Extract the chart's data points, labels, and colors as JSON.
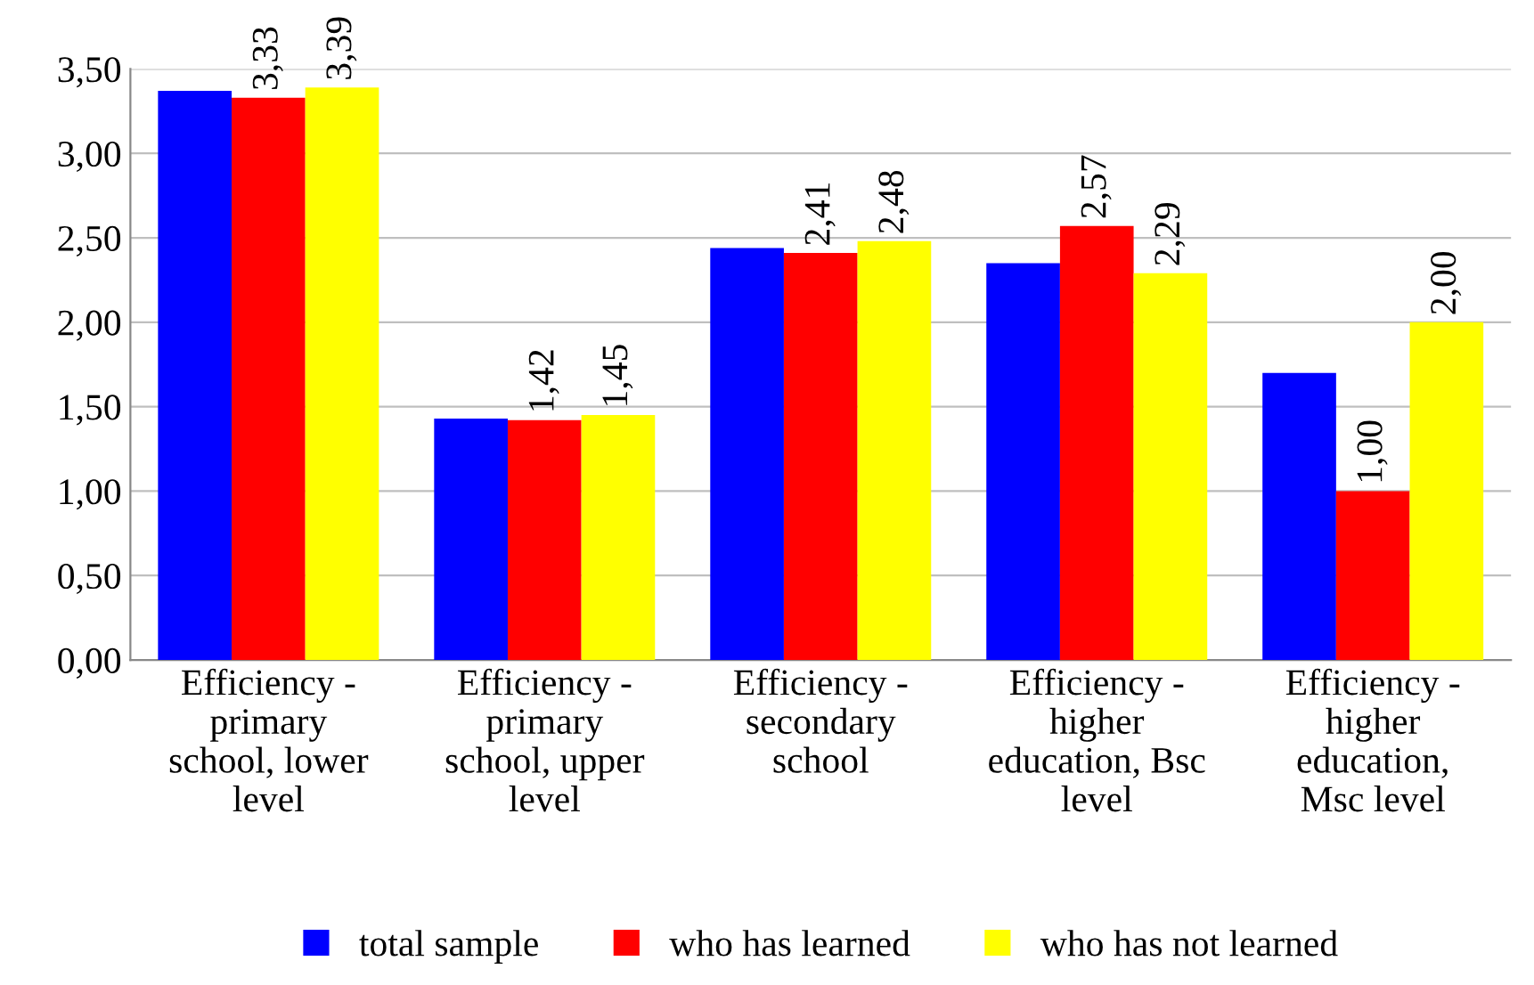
{
  "chart_data": {
    "type": "bar",
    "categories": [
      "Efficiency -\nprimary\nschool, lower\nlevel",
      "Efficiency -\nprimary\nschool, upper\nlevel",
      "Efficiency -\nsecondary\nschool",
      "Efficiency -\nhigher\neducation, Bsc\nlevel",
      "Efficiency -\nhigher\neducation,\nMsc level"
    ],
    "series": [
      {
        "name": "total sample",
        "color": "#0000ff",
        "values": [
          3.37,
          1.43,
          2.44,
          2.35,
          1.7
        ],
        "value_labels": [
          null,
          null,
          null,
          null,
          null
        ]
      },
      {
        "name": "who has learned",
        "color": "#ff0000",
        "values": [
          3.33,
          1.42,
          2.41,
          2.57,
          1.0
        ],
        "value_labels": [
          "3,33",
          "1,42",
          "2,41",
          "2,57",
          "1,00"
        ]
      },
      {
        "name": "who has not learned",
        "color": "#ffff00",
        "values": [
          3.39,
          1.45,
          2.48,
          2.29,
          2.0
        ],
        "value_labels": [
          "3,39",
          "1,45",
          "2,48",
          "2,29",
          "2,00"
        ]
      }
    ],
    "ylim": [
      0,
      3.5
    ],
    "yticks": [
      {
        "value": 0,
        "label": "0,00"
      },
      {
        "value": 0.5,
        "label": "0,50"
      },
      {
        "value": 1,
        "label": "1,00"
      },
      {
        "value": 1.5,
        "label": "1,50"
      },
      {
        "value": 2,
        "label": "2,00"
      },
      {
        "value": 2.5,
        "label": "2,50"
      },
      {
        "value": 3,
        "label": "3,00"
      },
      {
        "value": 3.5,
        "label": "3,50"
      }
    ],
    "grid": "y",
    "legend": "bottom"
  }
}
